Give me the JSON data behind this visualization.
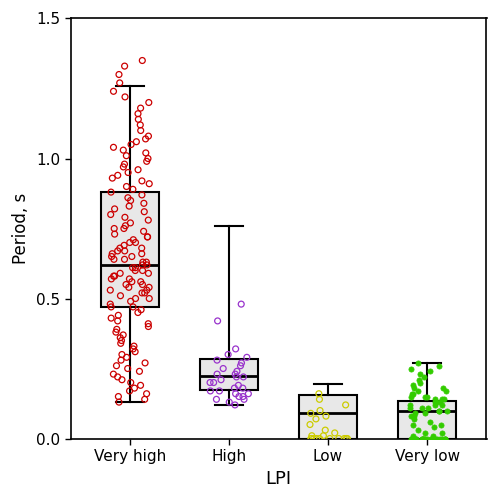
{
  "categories": [
    "Very high",
    "High",
    "Low",
    "Very low"
  ],
  "colors": [
    "#cc0000",
    "#9933cc",
    "#cccc00",
    "#33cc00"
  ],
  "dot_filled": [
    false,
    false,
    false,
    true
  ],
  "box_stats": {
    "Very high": {
      "whislo": 0.13,
      "q1": 0.47,
      "med": 0.62,
      "q3": 0.88,
      "whishi": 1.26
    },
    "High": {
      "whislo": 0.12,
      "q1": 0.175,
      "med": 0.225,
      "q3": 0.285,
      "whishi": 0.76
    },
    "Low": {
      "whislo": 0.0,
      "q1": 0.0,
      "med": 0.09,
      "q3": 0.155,
      "whishi": 0.195
    },
    "Very low": {
      "whislo": 0.0,
      "q1": 0.0,
      "med": 0.1,
      "q3": 0.135,
      "whishi": 0.27
    }
  },
  "scatter_data": {
    "Very high": [
      0.13,
      0.14,
      0.15,
      0.16,
      0.17,
      0.18,
      0.19,
      0.2,
      0.21,
      0.22,
      0.23,
      0.24,
      0.25,
      0.26,
      0.27,
      0.28,
      0.29,
      0.3,
      0.31,
      0.32,
      0.33,
      0.34,
      0.35,
      0.36,
      0.37,
      0.38,
      0.39,
      0.4,
      0.41,
      0.42,
      0.43,
      0.44,
      0.45,
      0.46,
      0.47,
      0.47,
      0.48,
      0.49,
      0.5,
      0.5,
      0.51,
      0.52,
      0.52,
      0.53,
      0.53,
      0.54,
      0.54,
      0.55,
      0.55,
      0.56,
      0.56,
      0.57,
      0.57,
      0.58,
      0.58,
      0.59,
      0.59,
      0.6,
      0.6,
      0.61,
      0.61,
      0.62,
      0.62,
      0.63,
      0.63,
      0.64,
      0.64,
      0.65,
      0.65,
      0.66,
      0.66,
      0.67,
      0.67,
      0.68,
      0.68,
      0.69,
      0.7,
      0.7,
      0.71,
      0.72,
      0.72,
      0.73,
      0.74,
      0.75,
      0.75,
      0.76,
      0.77,
      0.78,
      0.79,
      0.8,
      0.81,
      0.82,
      0.83,
      0.84,
      0.85,
      0.86,
      0.87,
      0.88,
      0.89,
      0.9,
      0.91,
      0.92,
      0.93,
      0.94,
      0.95,
      0.96,
      0.97,
      0.98,
      0.99,
      1.0,
      1.01,
      1.02,
      1.03,
      1.04,
      1.05,
      1.06,
      1.07,
      1.08,
      1.1,
      1.12,
      1.14,
      1.16,
      1.18,
      1.2,
      1.22,
      1.24,
      1.27,
      1.3,
      1.33,
      1.35
    ],
    "High": [
      0.12,
      0.13,
      0.14,
      0.14,
      0.15,
      0.15,
      0.16,
      0.16,
      0.17,
      0.17,
      0.18,
      0.18,
      0.19,
      0.2,
      0.2,
      0.21,
      0.22,
      0.22,
      0.23,
      0.23,
      0.24,
      0.25,
      0.26,
      0.27,
      0.28,
      0.29,
      0.3,
      0.32,
      0.42,
      0.48
    ],
    "Low": [
      0.0,
      0.0,
      0.0,
      0.0,
      0.0,
      0.0,
      0.0,
      0.0,
      0.0,
      0.0,
      0.01,
      0.01,
      0.02,
      0.03,
      0.05,
      0.07,
      0.08,
      0.09,
      0.1,
      0.12,
      0.14,
      0.16
    ],
    "Very low": [
      0.0,
      0.0,
      0.0,
      0.0,
      0.0,
      0.0,
      0.0,
      0.0,
      0.0,
      0.0,
      0.0,
      0.0,
      0.0,
      0.0,
      0.0,
      0.0,
      0.0,
      0.0,
      0.0,
      0.0,
      0.01,
      0.01,
      0.02,
      0.02,
      0.03,
      0.04,
      0.05,
      0.05,
      0.06,
      0.07,
      0.08,
      0.08,
      0.09,
      0.09,
      0.1,
      0.1,
      0.1,
      0.11,
      0.11,
      0.11,
      0.12,
      0.12,
      0.12,
      0.13,
      0.13,
      0.13,
      0.14,
      0.14,
      0.14,
      0.15,
      0.15,
      0.15,
      0.16,
      0.16,
      0.17,
      0.17,
      0.18,
      0.18,
      0.19,
      0.2,
      0.21,
      0.22,
      0.23,
      0.24,
      0.25,
      0.26,
      0.27
    ]
  },
  "xlabel": "LPI",
  "ylabel": "Period, s",
  "ylim": [
    0,
    1.5
  ],
  "yticks": [
    0.0,
    0.5,
    1.0,
    1.5
  ],
  "box_facecolor": "#e8e8e8",
  "box_edgecolor": "#000000",
  "median_color": "#000000",
  "whisker_color": "#000000",
  "cap_color": "#000000"
}
